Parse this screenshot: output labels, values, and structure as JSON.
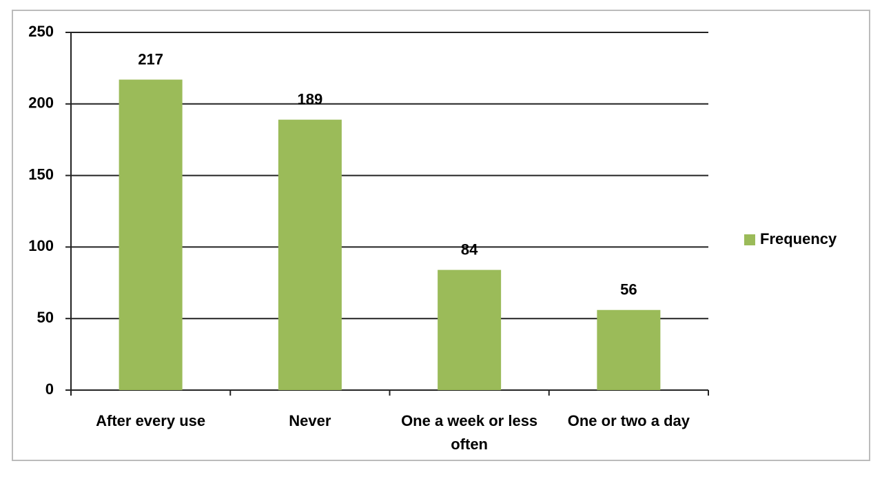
{
  "chart_data": {
    "type": "bar",
    "categories": [
      "After every use",
      "Never",
      "One a week or less often",
      "One or two a day"
    ],
    "series": [
      {
        "name": "Frequency",
        "color": "#9bbb59",
        "values": [
          217,
          189,
          84,
          56
        ]
      }
    ],
    "ylim": [
      0,
      250
    ],
    "yticks": [
      0,
      50,
      100,
      150,
      200,
      250
    ],
    "grid": true,
    "legend": "right"
  }
}
